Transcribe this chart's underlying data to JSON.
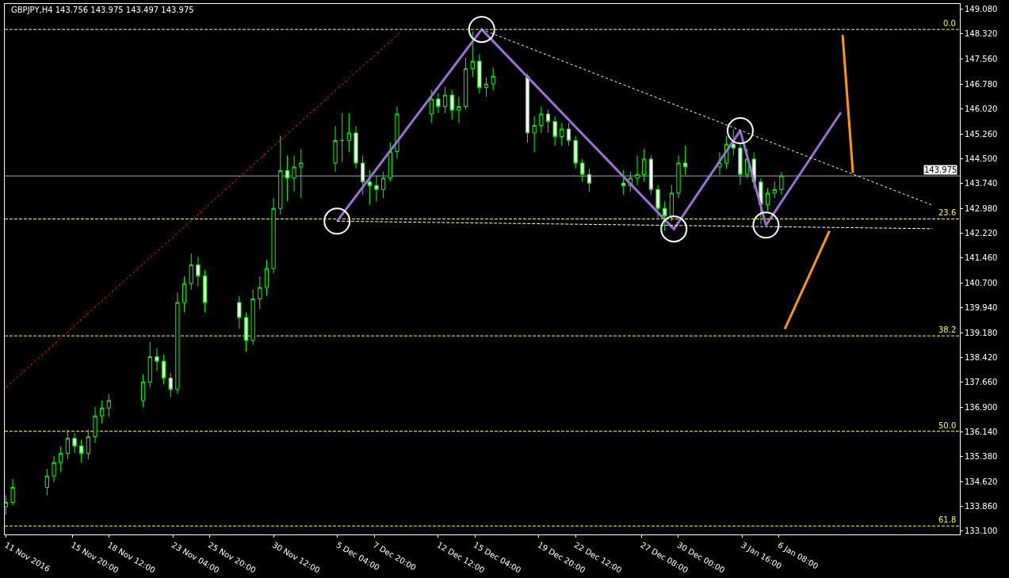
{
  "chart_data": {
    "type": "candlestick",
    "title": "GBPJPY,H4 143.756 143.975 143.497 143.975",
    "x": [
      "2016-11-11T00:00",
      "2016-11-11T12:00",
      "2016-11-14T00:00",
      "2016-11-14T12:00",
      "2016-11-15T00:00",
      "2016-11-15T12:00",
      "2016-11-16T00:00",
      "2016-11-16T12:00",
      "2016-11-17T00:00",
      "2016-11-17T12:00",
      "2016-11-18T00:00",
      "2016-11-18T12:00",
      "2016-11-21T00:00",
      "2016-11-21T12:00",
      "2016-11-22T00:00",
      "2016-11-22T12:00",
      "2016-11-23T00:00",
      "2016-11-23T12:00",
      "2016-11-24T00:00",
      "2016-11-24T12:00",
      "2016-11-25T00:00",
      "2016-11-25T12:00",
      "2016-11-28T00:00",
      "2016-11-28T12:00",
      "2016-11-29T00:00",
      "2016-11-29T12:00",
      "2016-11-30T00:00",
      "2016-11-30T12:00",
      "2016-12-01T00:00",
      "2016-12-01T12:00",
      "2016-12-02T00:00",
      "2016-12-02T12:00",
      "2016-12-05T00:00",
      "2016-12-05T12:00",
      "2016-12-06T00:00",
      "2016-12-06T12:00",
      "2016-12-07T00:00",
      "2016-12-07T12:00",
      "2016-12-08T00:00",
      "2016-12-08T12:00",
      "2016-12-09T00:00",
      "2016-12-09T12:00",
      "2016-12-12T00:00",
      "2016-12-12T12:00",
      "2016-12-13T00:00",
      "2016-12-13T12:00",
      "2016-12-14T00:00",
      "2016-12-14T12:00",
      "2016-12-15T00:00",
      "2016-12-15T12:00",
      "2016-12-16T00:00",
      "2016-12-16T12:00",
      "2016-12-19T00:00",
      "2016-12-19T12:00",
      "2016-12-20T00:00",
      "2016-12-20T12:00",
      "2016-12-21T00:00",
      "2016-12-21T12:00",
      "2016-12-22T00:00",
      "2016-12-22T12:00",
      "2016-12-23T00:00",
      "2016-12-23T12:00",
      "2016-12-26T00:00",
      "2016-12-26T12:00",
      "2016-12-27T00:00",
      "2016-12-27T12:00",
      "2016-12-28T00:00",
      "2016-12-28T12:00",
      "2016-12-29T00:00",
      "2016-12-29T12:00",
      "2016-12-30T00:00",
      "2016-12-30T12:00",
      "2017-01-02T00:00",
      "2017-01-02T12:00",
      "2017-01-03T00:00",
      "2017-01-03T12:00",
      "2017-01-04T00:00",
      "2017-01-04T12:00",
      "2017-01-05T00:00",
      "2017-01-05T12:00",
      "2017-01-06T00:00",
      "2017-01-06T12:00"
    ],
    "series": [
      {
        "color": "#00ff00",
        "ohlc": [
          [
            133.85,
            134.2,
            133.6,
            133.98
          ],
          [
            133.98,
            134.7,
            133.9,
            134.44
          ],
          [
            134.44,
            135.0,
            134.2,
            134.79
          ],
          [
            134.79,
            135.4,
            134.6,
            135.2
          ],
          [
            135.2,
            135.7,
            134.9,
            135.48
          ],
          [
            135.48,
            136.2,
            135.3,
            135.94
          ],
          [
            135.94,
            136.1,
            135.5,
            135.71
          ],
          [
            135.71,
            135.9,
            135.2,
            135.48
          ],
          [
            135.48,
            136.2,
            135.3,
            135.99
          ],
          [
            135.99,
            136.9,
            135.8,
            136.63
          ],
          [
            136.63,
            137.1,
            136.4,
            136.87
          ],
          [
            136.87,
            137.3,
            136.6,
            137.1
          ],
          [
            137.1,
            137.9,
            136.9,
            137.67
          ],
          [
            137.67,
            138.9,
            137.5,
            138.44
          ],
          [
            138.44,
            138.7,
            138.0,
            138.3
          ],
          [
            138.3,
            138.5,
            137.6,
            137.79
          ],
          [
            137.79,
            137.95,
            137.2,
            137.44
          ],
          [
            137.44,
            140.4,
            137.3,
            140.1
          ],
          [
            140.1,
            140.9,
            139.8,
            140.68
          ],
          [
            140.68,
            141.6,
            140.5,
            141.25
          ],
          [
            141.25,
            141.5,
            140.6,
            140.91
          ],
          [
            140.91,
            141.1,
            139.8,
            140.1
          ],
          [
            140.1,
            140.3,
            139.3,
            139.64
          ],
          [
            139.64,
            139.8,
            138.6,
            138.94
          ],
          [
            138.94,
            140.5,
            138.8,
            140.21
          ],
          [
            140.21,
            140.9,
            139.9,
            140.56
          ],
          [
            140.56,
            141.4,
            140.3,
            141.14
          ],
          [
            141.14,
            143.3,
            141.0,
            142.98
          ],
          [
            142.98,
            145.2,
            142.8,
            144.14
          ],
          [
            144.14,
            144.6,
            143.2,
            143.91
          ],
          [
            143.91,
            144.6,
            143.5,
            144.25
          ],
          [
            144.25,
            144.8,
            143.3,
            144.37
          ],
          [
            144.37,
            145.5,
            144.1,
            145.06
          ],
          [
            145.06,
            145.9,
            144.4,
            145.06
          ],
          [
            145.06,
            145.9,
            144.7,
            145.29
          ],
          [
            145.29,
            145.5,
            144.2,
            144.37
          ],
          [
            144.37,
            144.6,
            143.4,
            143.79
          ],
          [
            143.79,
            144.15,
            143.1,
            143.68
          ],
          [
            143.68,
            144.0,
            143.2,
            143.56
          ],
          [
            143.56,
            144.1,
            143.3,
            143.91
          ],
          [
            143.91,
            145.0,
            143.8,
            144.72
          ],
          [
            144.72,
            146.1,
            144.5,
            145.87
          ],
          [
            145.87,
            146.6,
            145.6,
            146.33
          ],
          [
            146.33,
            146.5,
            145.9,
            146.1
          ],
          [
            146.1,
            146.7,
            145.9,
            146.45
          ],
          [
            146.45,
            146.6,
            145.7,
            145.99
          ],
          [
            145.99,
            146.4,
            145.6,
            146.1
          ],
          [
            146.1,
            147.6,
            146.0,
            147.26
          ],
          [
            147.26,
            148.4,
            147.0,
            147.49
          ],
          [
            147.49,
            147.7,
            146.5,
            146.68
          ],
          [
            146.68,
            147.0,
            146.4,
            146.79
          ],
          [
            146.79,
            147.3,
            146.6,
            147.03
          ],
          [
            147.03,
            147.1,
            145.0,
            145.29
          ],
          [
            145.29,
            145.8,
            144.7,
            145.52
          ],
          [
            145.52,
            146.1,
            145.3,
            145.87
          ],
          [
            145.87,
            146.0,
            145.3,
            145.64
          ],
          [
            145.64,
            145.8,
            144.9,
            145.18
          ],
          [
            145.18,
            145.6,
            144.9,
            145.41
          ],
          [
            145.41,
            145.6,
            144.9,
            145.06
          ],
          [
            145.06,
            145.2,
            144.2,
            144.37
          ],
          [
            144.37,
            144.5,
            143.8,
            144.02
          ],
          [
            144.02,
            144.2,
            143.5,
            143.75
          ],
          [
            143.75,
            144.15,
            143.4,
            143.68
          ],
          [
            143.68,
            144.1,
            143.5,
            143.91
          ],
          [
            143.91,
            144.6,
            143.7,
            144.02
          ],
          [
            144.02,
            144.8,
            143.8,
            144.49
          ],
          [
            144.49,
            144.6,
            143.4,
            143.56
          ],
          [
            143.56,
            143.7,
            142.7,
            142.98
          ],
          [
            142.98,
            143.2,
            142.3,
            142.75
          ],
          [
            142.75,
            143.7,
            142.6,
            143.45
          ],
          [
            143.45,
            144.6,
            143.3,
            144.37
          ],
          [
            144.37,
            144.9,
            144.0,
            144.25
          ],
          [
            144.25,
            144.7,
            144.0,
            144.37
          ],
          [
            144.37,
            145.2,
            144.2,
            144.95
          ],
          [
            144.95,
            145.4,
            144.6,
            144.83
          ],
          [
            144.83,
            145.0,
            143.7,
            144.02
          ],
          [
            144.02,
            144.8,
            143.9,
            144.49
          ],
          [
            144.49,
            144.7,
            143.6,
            143.79
          ],
          [
            143.79,
            143.9,
            142.5,
            143.1
          ],
          [
            143.1,
            143.6,
            142.9,
            143.45
          ],
          [
            143.45,
            143.8,
            143.3,
            143.56
          ],
          [
            143.56,
            144.1,
            143.4,
            143.975
          ]
        ]
      },
      {
        "type": "line",
        "color": "#9b6fd6",
        "line_style": "solid",
        "marker": "none",
        "x": [
          "2016-12-05T03:00",
          "2016-12-15T16:00",
          "2016-12-29T16:00",
          "2017-01-03T12:00",
          "2017-01-05T09:00",
          "2017-01-10T20:00"
        ],
        "values": [
          142.59,
          148.46,
          142.35,
          145.36,
          142.47,
          145.92
        ]
      },
      {
        "type": "line",
        "color": "#ffffff",
        "line_style": "dotted",
        "marker": "none",
        "x": [
          "2016-12-15T16:00",
          "2017-01-17T12:00"
        ],
        "values": [
          148.46,
          143.08
        ]
      },
      {
        "type": "line",
        "color": "#ffffff",
        "line_style": "dashed",
        "marker": "none",
        "x": [
          "2016-12-05T03:00",
          "2017-01-17T12:00"
        ],
        "values": [
          142.59,
          142.36
        ]
      },
      {
        "type": "line",
        "color": "#ff2020",
        "line_style": "dotted",
        "marker": "none",
        "x": [
          "2016-11-11T00:00",
          "2016-12-09T20:00"
        ],
        "values": [
          137.5,
          148.41
        ]
      },
      {
        "type": "line",
        "color": "#ff9900",
        "line_style": "solid",
        "marker": "none",
        "x": [
          "2017-01-11T17:00",
          "2017-01-10T23:00"
        ],
        "values": [
          144.07,
          148.29
        ]
      },
      {
        "type": "line",
        "color": "#ff9900",
        "line_style": "solid",
        "marker": "none",
        "x": [
          "2017-01-10T00:00",
          "2017-01-06T18:00"
        ],
        "values": [
          142.29,
          139.29
        ]
      },
      {
        "type": "scatter",
        "color": "#ffffff",
        "marker": "circle",
        "x": [
          "2016-12-05T03:00",
          "2016-12-15T16:00",
          "2016-12-29T16:00",
          "2017-01-03T12:00",
          "2017-01-05T09:00"
        ],
        "values": [
          142.59,
          148.46,
          142.35,
          145.36,
          142.47
        ]
      }
    ],
    "xlim": [
      "2016-11-10T22:00",
      "2017-01-19T12:00"
    ],
    "xticks": [
      {
        "value": "2016-11-11T00:00",
        "label": "11 Nov 2016"
      },
      {
        "value": "2016-11-15T20:00",
        "label": "15 Nov 20:00"
      },
      {
        "value": "2016-11-18T12:00",
        "label": "18 Nov 12:00"
      },
      {
        "value": "2016-11-23T04:00",
        "label": "23 Nov 04:00"
      },
      {
        "value": "2016-11-25T20:00",
        "label": "25 Nov 20:00"
      },
      {
        "value": "2016-11-30T12:00",
        "label": "30 Nov 12:00"
      },
      {
        "value": "2016-12-05T04:00",
        "label": "5 Dec 04:00"
      },
      {
        "value": "2016-12-07T20:00",
        "label": "7 Dec 20:00"
      },
      {
        "value": "2016-12-12T12:00",
        "label": "12 Dec 12:00"
      },
      {
        "value": "2016-12-15T04:00",
        "label": "15 Dec 04:00"
      },
      {
        "value": "2016-12-19T20:00",
        "label": "19 Dec 20:00"
      },
      {
        "value": "2016-12-22T12:00",
        "label": "22 Dec 12:00"
      },
      {
        "value": "2016-12-27T08:00",
        "label": "27 Dec 08:00"
      },
      {
        "value": "2016-12-30T00:00",
        "label": "30 Dec 00:00"
      },
      {
        "value": "2017-01-03T16:00",
        "label": "3 Jan 16:00"
      },
      {
        "value": "2017-01-06T08:00",
        "label": "6 Jan 08:00"
      }
    ],
    "ylim": [
      133.0,
      149.24
    ],
    "yticks": [
      {
        "value": 149.08,
        "label": "149.080"
      },
      {
        "value": 148.32,
        "label": "148.320"
      },
      {
        "value": 147.56,
        "label": "147.560"
      },
      {
        "value": 146.78,
        "label": "146.780"
      },
      {
        "value": 146.02,
        "label": "146.020"
      },
      {
        "value": 145.26,
        "label": "145.260"
      },
      {
        "value": 144.5,
        "label": "144.500"
      },
      {
        "value": 143.74,
        "label": "143.740"
      },
      {
        "value": 142.98,
        "label": "142.980"
      },
      {
        "value": 142.22,
        "label": "142.220"
      },
      {
        "value": 141.46,
        "label": "141.460"
      },
      {
        "value": 140.7,
        "label": "140.700"
      },
      {
        "value": 139.94,
        "label": "139.940"
      },
      {
        "value": 139.18,
        "label": "139.180"
      },
      {
        "value": 138.42,
        "label": "138.420"
      },
      {
        "value": 137.66,
        "label": "137.660"
      },
      {
        "value": 136.9,
        "label": "136.900"
      },
      {
        "value": 136.14,
        "label": "136.140"
      },
      {
        "value": 135.38,
        "label": "135.380"
      },
      {
        "value": 134.62,
        "label": "134.620"
      },
      {
        "value": 133.86,
        "label": "133.860"
      },
      {
        "value": 133.1,
        "label": "133.100"
      }
    ],
    "ref_lines": [
      {
        "axis": "y",
        "value": 148.46,
        "color": "#ffff00",
        "line_style": "dashed"
      },
      {
        "axis": "y",
        "value": 142.66,
        "color": "#ffff00",
        "line_style": "dashed"
      },
      {
        "axis": "y",
        "value": 139.08,
        "color": "#ffff00",
        "line_style": "dashed"
      },
      {
        "axis": "y",
        "value": 136.16,
        "color": "#ffff00",
        "line_style": "dashed"
      },
      {
        "axis": "y",
        "value": 133.26,
        "color": "#ffff00",
        "line_style": "dashed"
      },
      {
        "axis": "y",
        "value": 143.975,
        "label": "143.975",
        "color": "#a0a8b0",
        "line_style": "solid"
      }
    ],
    "annotations": [
      {
        "text": "0.0",
        "y": 148.46
      },
      {
        "text": "23.6",
        "y": 142.66
      },
      {
        "text": "38.2",
        "y": 139.08
      },
      {
        "text": "50.0",
        "y": 136.16
      },
      {
        "text": "61.8",
        "y": 133.26
      }
    ],
    "grid": false
  }
}
